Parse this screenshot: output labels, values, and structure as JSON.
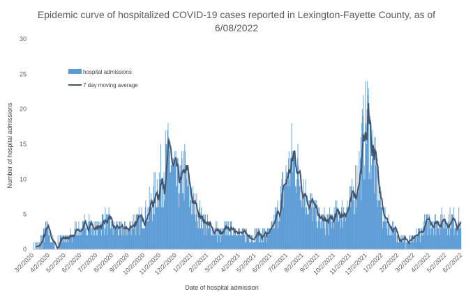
{
  "chart_data": {
    "type": "bar",
    "title": "Epidemic curve of hospitalized COVID-19 cases reported in Lexington-Fayette County, as of 6/08/2022",
    "title_line1": "Epidemic curve of hospitalized COVID-19 cases reported in Lexington-Fayette County, as of",
    "title_line2": "6/08/2022",
    "xlabel": "Date of hospital admission",
    "ylabel": "Number of hospital admissions",
    "ylim": [
      0,
      30
    ],
    "yticks": [
      0,
      5,
      10,
      15,
      20,
      25,
      30
    ],
    "x_tick_labels": [
      "3/2/2020",
      "4/2/2020",
      "5/2/2020",
      "6/2/2020",
      "7/2/2020",
      "8/2/2020",
      "9/2/2020",
      "10/2/2020",
      "11/2/2020",
      "12/2/2020",
      "1/2/2021",
      "2/2/2021",
      "3/2/2021",
      "4/2/2021",
      "5/2/2021",
      "6/2/2021",
      "7/2/2021",
      "8/2/2021",
      "9/2/2021",
      "10/2/2021",
      "11/2/2021",
      "12/2/2021",
      "1/2/2022",
      "2/2/2022",
      "3/2/2022",
      "4/2/2022",
      "5/2/2022",
      "6/2/2022"
    ],
    "grid": false,
    "legend_position": "top-left",
    "colors": {
      "bars": "#5b9bd5",
      "line": "#44546a"
    },
    "series": [
      {
        "name": "hospital admissions",
        "kind": "bar",
        "note": "daily admissions, one value per day from 3/2/2020",
        "keypoints": [
          [
            0,
            0
          ],
          [
            10,
            0
          ],
          [
            14,
            1
          ],
          [
            20,
            2
          ],
          [
            25,
            3
          ],
          [
            32,
            2
          ],
          [
            38,
            1
          ],
          [
            45,
            0
          ],
          [
            50,
            1
          ],
          [
            58,
            2
          ],
          [
            65,
            1
          ],
          [
            75,
            2
          ],
          [
            85,
            3
          ],
          [
            95,
            3
          ],
          [
            105,
            4
          ],
          [
            115,
            3
          ],
          [
            125,
            3
          ],
          [
            135,
            4
          ],
          [
            145,
            4
          ],
          [
            155,
            3
          ],
          [
            165,
            3
          ],
          [
            175,
            3
          ],
          [
            185,
            3
          ],
          [
            195,
            4
          ],
          [
            205,
            4
          ],
          [
            215,
            5
          ],
          [
            225,
            6
          ],
          [
            235,
            8
          ],
          [
            245,
            10
          ],
          [
            255,
            12
          ],
          [
            262,
            13
          ],
          [
            270,
            11
          ],
          [
            278,
            9
          ],
          [
            283,
            9
          ],
          [
            288,
            11
          ],
          [
            293,
            11
          ],
          [
            300,
            8
          ],
          [
            310,
            6
          ],
          [
            320,
            5
          ],
          [
            330,
            4
          ],
          [
            340,
            3
          ],
          [
            350,
            3
          ],
          [
            360,
            2
          ],
          [
            370,
            3
          ],
          [
            380,
            3
          ],
          [
            390,
            3
          ],
          [
            400,
            2
          ],
          [
            410,
            2
          ],
          [
            420,
            2
          ],
          [
            430,
            2
          ],
          [
            440,
            2
          ],
          [
            450,
            2
          ],
          [
            460,
            3
          ],
          [
            470,
            5
          ],
          [
            480,
            8
          ],
          [
            490,
            11
          ],
          [
            500,
            13
          ],
          [
            507,
            12
          ],
          [
            515,
            10
          ],
          [
            525,
            8
          ],
          [
            535,
            6
          ],
          [
            545,
            5
          ],
          [
            555,
            4
          ],
          [
            565,
            4
          ],
          [
            575,
            4
          ],
          [
            585,
            5
          ],
          [
            595,
            5
          ],
          [
            605,
            6
          ],
          [
            615,
            7
          ],
          [
            620,
            9
          ],
          [
            630,
            12
          ],
          [
            638,
            17
          ],
          [
            643,
            20
          ],
          [
            648,
            17
          ],
          [
            655,
            13
          ],
          [
            662,
            10
          ],
          [
            670,
            6
          ],
          [
            680,
            4
          ],
          [
            690,
            3
          ],
          [
            700,
            2
          ],
          [
            710,
            2
          ],
          [
            720,
            1
          ],
          [
            730,
            1
          ],
          [
            740,
            2
          ],
          [
            750,
            3
          ],
          [
            760,
            4
          ],
          [
            767,
            4
          ],
          [
            824,
            4
          ]
        ]
      },
      {
        "name": "7 day moving average",
        "kind": "line"
      }
    ]
  }
}
